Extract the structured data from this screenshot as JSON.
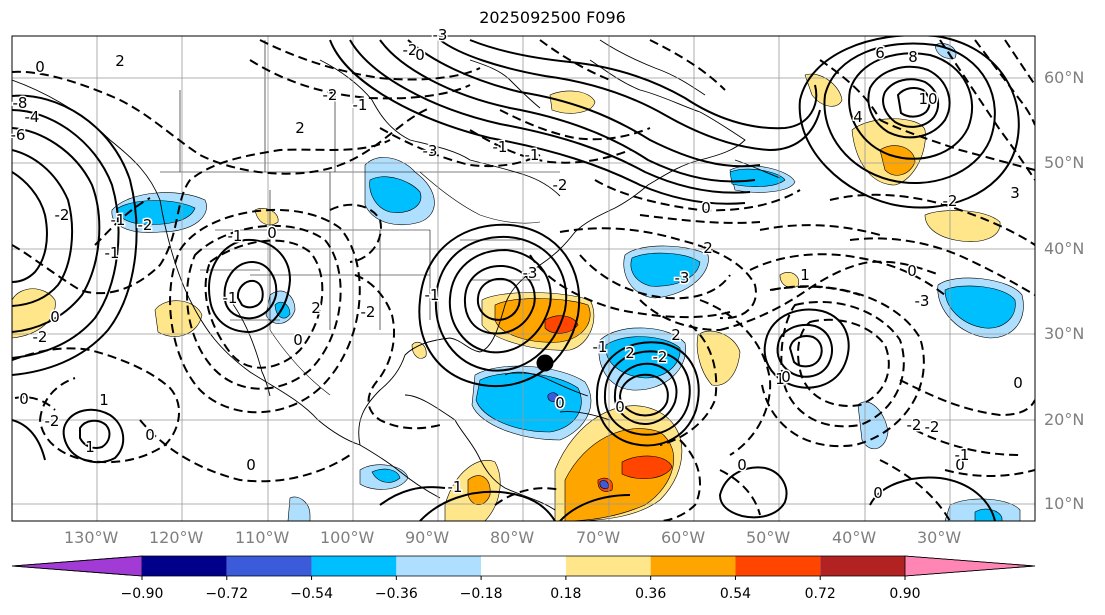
{
  "title": "2025092500 F096",
  "map": {
    "projection": "Mercator",
    "extent_lon": [
      -140,
      -20
    ],
    "extent_lat": [
      7,
      66
    ],
    "gridlines": true,
    "storm_marker": {
      "lon": -78.5,
      "lat": 26.8
    }
  },
  "lon_labels": [
    "130°W",
    "120°W",
    "110°W",
    "100°W",
    "90°W",
    "80°W",
    "70°W",
    "60°W",
    "50°W",
    "40°W",
    "30°W"
  ],
  "lat_labels": [
    "10°N",
    "20°N",
    "30°N",
    "40°N",
    "50°N",
    "60°N"
  ],
  "contour_labels": [
    "2",
    "0",
    "0",
    "-6",
    "-8",
    "-4",
    "-2",
    "-1",
    "-2",
    "-3",
    "-2",
    "0",
    "-3",
    "-1",
    "-1",
    "-2",
    "2",
    "-1",
    "-1",
    "-2",
    "0",
    "-2",
    "0",
    "-2",
    "6",
    "8",
    "10",
    "4",
    "-2",
    "3",
    "-3",
    "0",
    "2",
    "1",
    "-3",
    "0",
    "1",
    "0",
    "-2",
    "2",
    "0",
    "-1",
    "-3",
    "-1",
    "0",
    "0",
    "-2",
    "-1",
    "-1",
    "2",
    "0",
    "1",
    "1",
    "0",
    "-1",
    "-2",
    "0",
    "0",
    "-1",
    "0",
    "-2",
    "2",
    "0"
  ],
  "colorbar": {
    "colors": [
      "#a23bd6",
      "#00008b",
      "#3b5bdb",
      "#00bfff",
      "#aedfff",
      "#ffffff",
      "#ffe68a",
      "#ffa500",
      "#ff4500",
      "#b22222",
      "#ff85b4"
    ],
    "ticks": [
      "−0.90",
      "−0.72",
      "−0.54",
      "−0.36",
      "−0.18",
      "0.18",
      "0.36",
      "0.54",
      "0.72",
      "0.90"
    ],
    "extend": "both"
  }
}
